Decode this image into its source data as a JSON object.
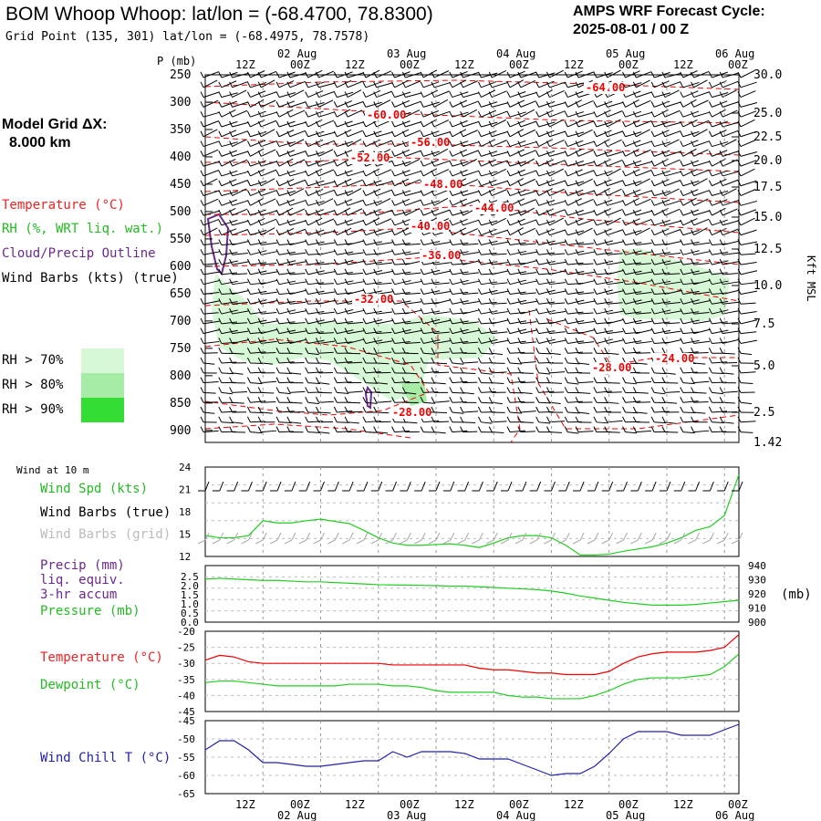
{
  "header": {
    "title": "BOM Whoop Whoop:  lat/lon = (-68.4700, 78.8300)",
    "subtitle": "Grid Point (135, 301) lat/lon = (-68.4975, 78.7578)",
    "cycle_line1": "AMPS WRF Forecast Cycle:",
    "cycle_line2": "2025-08-01 / 00  Z"
  },
  "model_grid": {
    "line1": "Model Grid ΔX:",
    "line2": "8.000 km"
  },
  "legend": {
    "temperature": "Temperature (°C)",
    "rh": "RH (%, WRT liq. wat.)",
    "cloud": "Cloud/Precip Outline",
    "wind": "Wind Barbs (kts) (true)",
    "rh_levels": [
      {
        "label": "RH > 70%",
        "color": "#d6f8d6"
      },
      {
        "label": "RH > 80%",
        "color": "#a6eca6"
      },
      {
        "label": "RH > 90%",
        "color": "#33dd33"
      }
    ]
  },
  "axes": {
    "p_label": "P (mb)",
    "p_ticks": [
      "250",
      "300",
      "350",
      "400",
      "450",
      "500",
      "550",
      "600",
      "650",
      "700",
      "750",
      "800",
      "850",
      "900"
    ],
    "kft_label": "Kft MSL",
    "kft_ticks": [
      "30.0",
      "25.0",
      "22.5",
      "20.0",
      "17.5",
      "15.0",
      "12.5",
      "10.0",
      "7.5",
      "5.0",
      "2.5",
      "1.42"
    ],
    "time_ticks": [
      "12Z",
      "00Z",
      "12Z",
      "00Z",
      "12Z",
      "00Z",
      "12Z",
      "00Z",
      "12Z",
      "00Z"
    ],
    "date_ticks": [
      "02 Aug",
      "03 Aug",
      "04 Aug",
      "05 Aug",
      "06 Aug"
    ]
  },
  "panels": {
    "wind10_title": "Wind at 10 m",
    "wind_spd": "Wind Spd (kts)",
    "wind_barbs_true": "Wind Barbs (true)",
    "wind_barbs_grid": "Wind Barbs (grid)",
    "precip": "Precip (mm)",
    "precip2": "liq. equiv.",
    "precip3": "3-hr accum",
    "pressure": "Pressure (mb)",
    "mb_unit": "(mb)",
    "temperature": "Temperature (°C)",
    "dewpoint": "Dewpoint (°C)",
    "windchill": "Wind Chill T (°C)",
    "spd_ticks": [
      "24",
      "21",
      "18",
      "15",
      "12"
    ],
    "precip_ticks": [
      "2.5",
      "2.0",
      "1.5",
      "1.0",
      "0.5",
      "0.0"
    ],
    "pres_ticks": [
      "940",
      "930",
      "920",
      "910",
      "900"
    ],
    "temp_ticks": [
      "-20",
      "-25",
      "-30",
      "-35",
      "-40",
      "-45"
    ],
    "chill_ticks": [
      "-45",
      "-50",
      "-55",
      "-60",
      "-65"
    ]
  },
  "contour_labels": [
    "-64.00",
    "-60.00",
    "-56.00",
    "-52.00",
    "-48.00",
    "-44.00",
    "-40.00",
    "-36.00",
    "-32.00",
    "-28.00",
    "-24.00",
    "-28.00"
  ],
  "colors": {
    "temperature": "#ee0000",
    "dewpoint": "#22cc22",
    "pressure": "#22cc22",
    "windspd": "#22cc22",
    "windchill": "#2222aa",
    "precip": "#6a2a8a"
  },
  "chart_data": [
    {
      "type": "line",
      "panel": "wind10",
      "series": [
        {
          "name": "Wind Spd (kts)",
          "values": [
            14.8,
            14.5,
            14.5,
            14.8,
            16.8,
            16.5,
            16.5,
            16.8,
            17,
            16.7,
            16.4,
            15.5,
            14.5,
            13.8,
            13.5,
            13.5,
            13.6,
            13.7,
            13.5,
            13.2,
            13.8,
            14.5,
            14.8,
            14.8,
            14.5,
            13.5,
            12.2,
            12.2,
            12.3,
            12.7,
            13.0,
            13.3,
            13.8,
            14.5,
            15.5,
            16.0,
            17.5,
            23.0
          ]
        }
      ],
      "x_hours_start": 0,
      "x_hours_step": 3,
      "ylim": [
        12,
        24
      ]
    },
    {
      "type": "line",
      "panel": "pressure",
      "series": [
        {
          "name": "Pressure (mb)",
          "values": [
            930.5,
            931,
            930.5,
            930,
            929.5,
            929.5,
            929,
            928.5,
            928.5,
            928,
            927.5,
            927,
            926.5,
            926.3,
            926.2,
            926,
            925.8,
            925.5,
            925.5,
            925,
            924.5,
            924,
            923.5,
            923,
            922,
            920.5,
            918.5,
            917,
            915.5,
            914,
            913,
            912,
            912,
            912,
            912.5,
            913.5,
            914.5,
            915.5
          ]
        }
      ],
      "ylim": [
        900,
        940
      ]
    },
    {
      "type": "line",
      "panel": "temperature",
      "series": [
        {
          "name": "Temperature (°C)",
          "values": [
            -29,
            -27.5,
            -28,
            -29.5,
            -30,
            -30,
            -30,
            -30,
            -30,
            -30,
            -30,
            -30,
            -30,
            -30.5,
            -30.5,
            -30.5,
            -30.5,
            -30.5,
            -30.5,
            -31.5,
            -32,
            -32,
            -32.5,
            -33,
            -33,
            -33.5,
            -33.5,
            -33.5,
            -32.5,
            -30,
            -28,
            -27,
            -26.5,
            -26.5,
            -26.5,
            -26,
            -25,
            -21
          ]
        },
        {
          "name": "Dewpoint (°C)",
          "values": [
            -36,
            -35.5,
            -35.5,
            -36,
            -36.5,
            -37,
            -37,
            -37,
            -37,
            -37,
            -36.5,
            -36.5,
            -36.5,
            -37,
            -37,
            -37.5,
            -38.5,
            -39,
            -39,
            -39,
            -39,
            -40,
            -40.5,
            -40.5,
            -41,
            -41,
            -41,
            -40,
            -38.5,
            -36.5,
            -35,
            -34.5,
            -34.5,
            -34.5,
            -34,
            -33.5,
            -31,
            -27
          ]
        }
      ],
      "ylim": [
        -45,
        -20
      ]
    },
    {
      "type": "line",
      "panel": "windchill",
      "series": [
        {
          "name": "Wind Chill T (°C)",
          "values": [
            -53,
            -50.5,
            -50.5,
            -53,
            -56.5,
            -56.5,
            -57,
            -57.5,
            -57.5,
            -57,
            -56.5,
            -56,
            -56,
            -53.5,
            -55,
            -53.5,
            -53.5,
            -53.5,
            -54,
            -55.5,
            -55.5,
            -55.5,
            -57,
            -58.5,
            -60,
            -59.5,
            -59.5,
            -57.5,
            -54,
            -50,
            -48,
            -48,
            -48,
            -49,
            -49,
            -49,
            -47.5,
            -46
          ]
        }
      ],
      "ylim": [
        -65,
        -45
      ]
    }
  ]
}
